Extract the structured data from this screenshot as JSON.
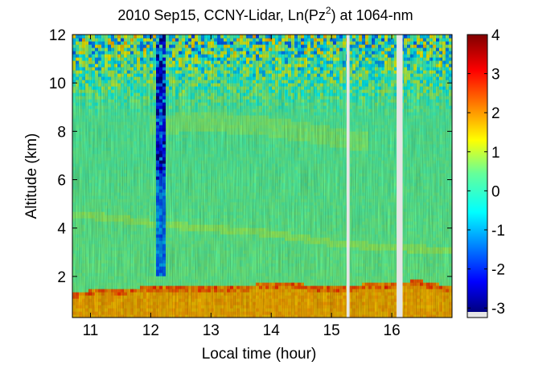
{
  "chart_data": {
    "type": "heatmap",
    "title_parts": [
      "2010 Sep15, CCNY-Lidar, Ln(Pz",
      "2",
      ") at 1064-nm"
    ],
    "xlabel": "Local time (hour)",
    "ylabel": "Altitude (km)",
    "xlim": [
      10.7,
      17.0
    ],
    "ylim": [
      0.3,
      12.0
    ],
    "xticks": [
      11,
      12,
      13,
      14,
      15,
      16
    ],
    "yticks": [
      2,
      4,
      6,
      8,
      10,
      12
    ],
    "colorbar": {
      "label": "",
      "range": [
        -3.1,
        4.0
      ],
      "ticks": [
        4,
        3,
        2,
        1,
        0,
        -1,
        -2,
        -3
      ],
      "colormap": "jet",
      "nodata_color": "#e6e6e6"
    },
    "no_data_gaps_hours": [
      [
        15.25,
        15.3
      ],
      [
        16.08,
        16.18
      ]
    ],
    "features": {
      "boundary_layer_top_km": [
        [
          10.7,
          1.4
        ],
        [
          11.5,
          1.5
        ],
        [
          12.0,
          1.6
        ],
        [
          12.5,
          1.65
        ],
        [
          13.0,
          1.6
        ],
        [
          13.5,
          1.65
        ],
        [
          14.0,
          1.75
        ],
        [
          14.5,
          1.7
        ],
        [
          15.0,
          1.6
        ],
        [
          15.3,
          1.65
        ],
        [
          16.0,
          1.8
        ],
        [
          16.5,
          1.85
        ],
        [
          17.0,
          1.6
        ]
      ],
      "aerosol_layer_km": [
        [
          10.7,
          4.6
        ],
        [
          11.5,
          4.4
        ],
        [
          12.0,
          4.2
        ],
        [
          13.0,
          4.0
        ],
        [
          14.0,
          3.8
        ],
        [
          15.0,
          3.4
        ],
        [
          15.5,
          3.3
        ],
        [
          16.0,
          3.2
        ],
        [
          17.0,
          3.1
        ]
      ],
      "upper_layer_km": [
        [
          12.0,
          8.3
        ],
        [
          13.0,
          8.4
        ],
        [
          14.0,
          8.2
        ],
        [
          15.0,
          7.8
        ],
        [
          15.5,
          7.6
        ]
      ],
      "noise_column_hours": [
        12.1,
        12.25
      ]
    }
  }
}
